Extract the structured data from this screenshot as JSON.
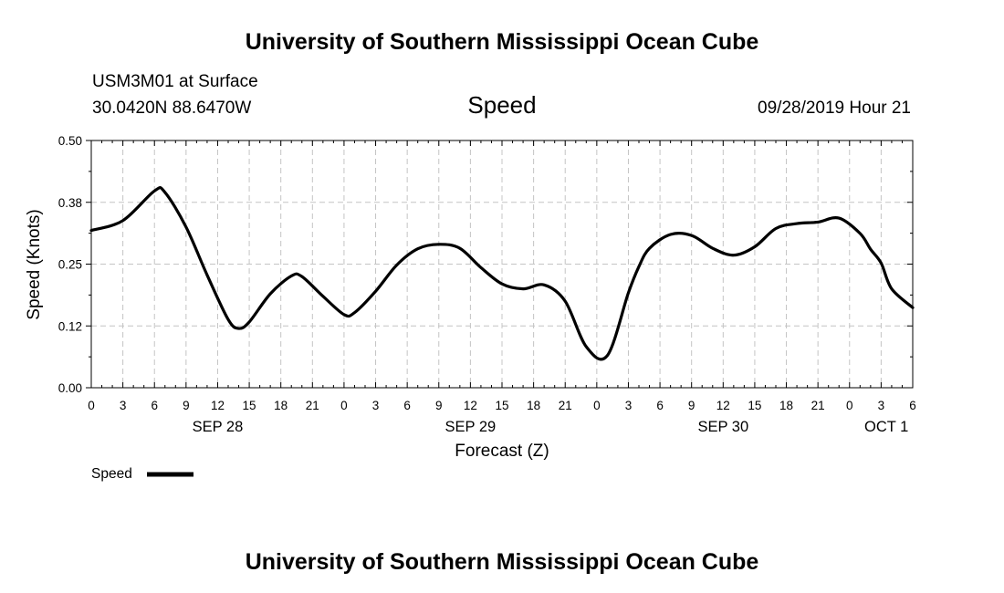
{
  "header": {
    "title": "University of Southern Mississippi Ocean Cube",
    "station": "USM3M01 at Surface",
    "location": "30.0420N 88.6470W",
    "datetime": "09/28/2019 Hour 21"
  },
  "footer": {
    "title": "University of Southern Mississippi Ocean Cube"
  },
  "chart_data": {
    "type": "line",
    "title": "Speed",
    "xlabel": "Forecast (Z)",
    "ylabel": "Speed (Knots)",
    "xlim": [
      0,
      78
    ],
    "ylim": [
      0.0,
      0.5
    ],
    "yticks": [
      "0.00",
      "0.12",
      "0.25",
      "0.38",
      "0.50"
    ],
    "ytick_values": [
      0.0,
      0.125,
      0.25,
      0.375,
      0.5
    ],
    "xtick_hours": [
      0,
      3,
      6,
      9,
      12,
      15,
      18,
      21,
      24,
      27,
      30,
      33,
      36,
      39,
      42,
      45,
      48,
      51,
      54,
      57,
      60,
      63,
      66,
      69,
      72,
      75,
      78
    ],
    "xtick_labels": [
      "0",
      "3",
      "6",
      "9",
      "12",
      "15",
      "18",
      "21",
      "0",
      "3",
      "6",
      "9",
      "12",
      "15",
      "18",
      "21",
      "0",
      "3",
      "6",
      "9",
      "12",
      "15",
      "18",
      "21",
      "0",
      "3",
      "6"
    ],
    "date_labels": [
      {
        "hour": 12,
        "label": "SEP 28"
      },
      {
        "hour": 36,
        "label": "SEP 29"
      },
      {
        "hour": 60,
        "label": "SEP 30"
      },
      {
        "hour": 75.5,
        "label": "OCT 1"
      }
    ],
    "grid": true,
    "legend": "bottom-left",
    "series": [
      {
        "name": "Speed",
        "color": "#000000",
        "x": [
          0,
          3,
          6,
          7,
          9,
          11,
          13,
          14,
          15,
          17,
          19,
          20,
          22,
          24,
          25,
          27,
          29,
          31,
          33,
          35,
          37,
          39,
          41,
          43,
          45,
          47,
          49,
          51,
          52,
          53,
          55,
          57,
          59,
          61,
          63,
          65,
          67,
          69,
          71,
          73,
          74,
          75,
          76,
          78
        ],
        "values": [
          0.318,
          0.338,
          0.398,
          0.395,
          0.325,
          0.228,
          0.138,
          0.12,
          0.133,
          0.19,
          0.226,
          0.225,
          0.185,
          0.148,
          0.152,
          0.195,
          0.248,
          0.281,
          0.29,
          0.282,
          0.243,
          0.21,
          0.2,
          0.208,
          0.175,
          0.083,
          0.065,
          0.192,
          0.245,
          0.282,
          0.31,
          0.308,
          0.282,
          0.268,
          0.285,
          0.322,
          0.332,
          0.335,
          0.343,
          0.312,
          0.28,
          0.252,
          0.2,
          0.162
        ]
      }
    ]
  }
}
